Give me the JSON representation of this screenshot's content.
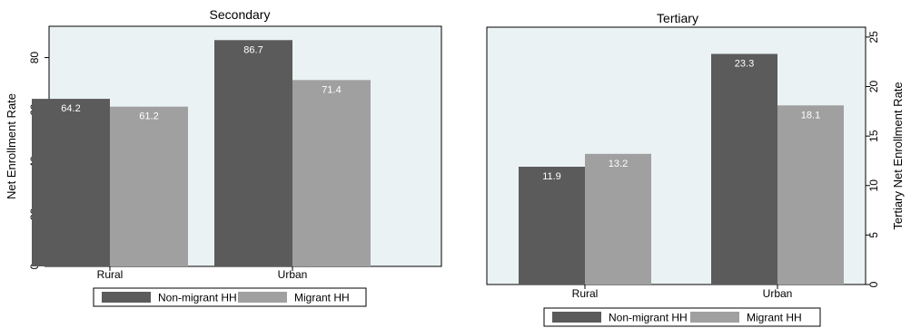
{
  "chart_data": [
    {
      "type": "bar",
      "title": "Secondary",
      "xlabel": "",
      "ylabel": "Net Enrollment Rate",
      "ylim": [
        0,
        92
      ],
      "yticks": [
        0,
        20,
        40,
        60,
        80
      ],
      "y_axis_side": "left",
      "categories": [
        "Rural",
        "Urban"
      ],
      "series": [
        {
          "name": "Non-migrant HH",
          "values": [
            64.2,
            86.7
          ]
        },
        {
          "name": "Migrant HH",
          "values": [
            61.2,
            71.4
          ]
        }
      ],
      "data_labels": [
        [
          "64.2",
          "86.7"
        ],
        [
          "61.2",
          "71.4"
        ]
      ],
      "legend_position": "bottom",
      "grid": false
    },
    {
      "type": "bar",
      "title": "Tertiary",
      "xlabel": "",
      "ylabel": "Tertiary Net Enrollment Rate",
      "ylim": [
        0,
        26
      ],
      "yticks": [
        0,
        5,
        10,
        15,
        20,
        25
      ],
      "y_axis_side": "right",
      "categories": [
        "Rural",
        "Urban"
      ],
      "series": [
        {
          "name": "Non-migrant HH",
          "values": [
            11.9,
            23.3
          ]
        },
        {
          "name": "Migrant HH",
          "values": [
            13.2,
            18.1
          ]
        }
      ],
      "data_labels": [
        [
          "11.9",
          "23.3"
        ],
        [
          "13.2",
          "18.1"
        ]
      ],
      "legend_position": "bottom",
      "grid": false
    }
  ],
  "colors": {
    "non_migrant": "#5b5b5b",
    "migrant": "#a0a0a0",
    "plot_bg": "#eaf2f3",
    "axis": "#000000",
    "value_label": "#ffffff"
  }
}
